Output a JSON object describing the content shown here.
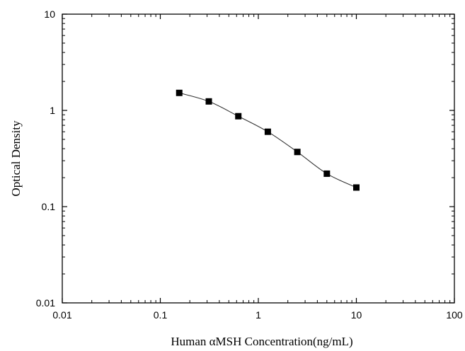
{
  "chart_data": {
    "type": "scatter",
    "xscale": "log",
    "yscale": "log",
    "xlim": [
      0.01,
      100
    ],
    "ylim": [
      0.01,
      10
    ],
    "xlabel": "Human αMSH Concentration(ng/mL)",
    "ylabel": "Optical Density",
    "x_tick_labels": [
      "0.01",
      "0.1",
      "1",
      "10",
      "100"
    ],
    "y_tick_labels": [
      "0.01",
      "0.1",
      "1",
      "10"
    ],
    "x_ticks": [
      0.01,
      0.1,
      1,
      10,
      100
    ],
    "y_ticks": [
      0.01,
      0.1,
      1,
      10
    ],
    "grid": false,
    "series": [
      {
        "x": [
          0.156,
          0.3125,
          0.625,
          1.25,
          2.5,
          5,
          10
        ],
        "y": [
          1.52,
          1.24,
          0.87,
          0.6,
          0.37,
          0.22,
          0.158
        ],
        "marker": "square",
        "fit_curve": true
      }
    ],
    "colors": {
      "marker": "#000000",
      "line": "#333333",
      "axis": "#000000"
    }
  }
}
